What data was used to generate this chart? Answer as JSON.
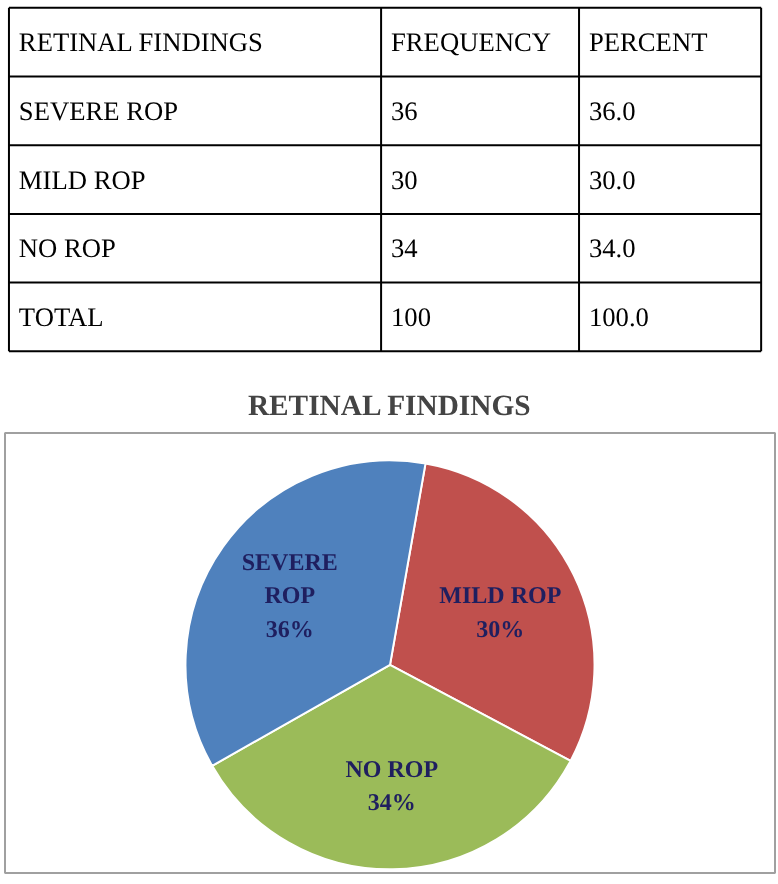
{
  "chart_data": [
    {
      "type": "other",
      "annotations": [
        "RETINAL FINDINGS",
        "FREQUENCY",
        "PERCENT",
        "SEVERE ROP",
        "36",
        "36.0",
        "MILD ROP",
        "30",
        "30.0",
        "NO ROP",
        "34",
        "34.0",
        "TOTAL",
        "100",
        "100.0"
      ]
    },
    {
      "type": "pie",
      "title": "RETINAL FINDINGS",
      "categories": [
        "MILD ROP",
        "NO ROP",
        "SEVERE ROP"
      ],
      "values": [
        30,
        34,
        36
      ],
      "colors": [
        "#c0504d",
        "#9bbb59",
        "#4f81bd"
      ],
      "value_labels": [
        "30%",
        "34%",
        "36%"
      ]
    }
  ]
}
